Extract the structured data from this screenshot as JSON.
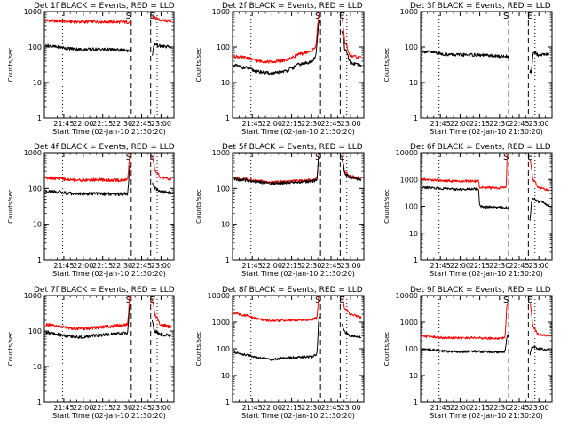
{
  "figure": {
    "background": "#ffffff",
    "axis_color": "#000000",
    "events_color": "#000000",
    "lld_color": "#ff0000"
  },
  "chart_data": [
    {
      "type": "line",
      "title": "Det 1f BLACK = Events, RED = LLD",
      "xlabel": "Start Time (02-Jan-10 21:30:20)",
      "ylabel": "Counts/sec",
      "xlim": [
        "21:30",
        "23:10"
      ],
      "xticks": [
        "21:45",
        "22:00",
        "22:15",
        "22:30",
        "22:45",
        "23:00"
      ],
      "yscale": "log",
      "ylim": [
        1,
        1000
      ],
      "yticks": [
        "1",
        "10",
        "100",
        "1000"
      ],
      "markers": {
        "dotted": [
          "21:44",
          "22:57"
        ],
        "dashed": [
          "22:37",
          "22:52"
        ],
        "labels": [
          "S",
          "E"
        ]
      },
      "series": [
        {
          "label": "Events",
          "color": "#000000",
          "gaps": [
            [
              "22:37",
              "22:53"
            ]
          ],
          "x": [
            "21:31",
            "21:40",
            "21:50",
            "22:00",
            "22:10",
            "22:20",
            "22:30",
            "22:36",
            "22:53",
            "22:55",
            "23:00",
            "23:08"
          ],
          "y": [
            110,
            100,
            90,
            85,
            87,
            85,
            82,
            80,
            60,
            120,
            105,
            100
          ]
        },
        {
          "label": "LLD",
          "color": "#ff0000",
          "gaps": [
            [
              "22:37",
              "22:53"
            ]
          ],
          "x": [
            "21:31",
            "21:40",
            "21:50",
            "22:00",
            "22:10",
            "22:20",
            "22:30",
            "22:36",
            "22:53",
            "22:56",
            "23:00",
            "23:08"
          ],
          "y": [
            560,
            540,
            520,
            510,
            520,
            515,
            505,
            500,
            720,
            650,
            560,
            540
          ]
        }
      ]
    },
    {
      "type": "line",
      "title": "Det 2f BLACK = Events, RED = LLD",
      "xlabel": "Start Time (02-Jan-10 21:30:20)",
      "ylabel": "Counts/sec",
      "xlim": [
        "21:30",
        "23:10"
      ],
      "xticks": [
        "21:45",
        "22:00",
        "22:15",
        "22:30",
        "22:45",
        "23:00"
      ],
      "yscale": "log",
      "ylim": [
        1,
        1000
      ],
      "yticks": [
        "1",
        "10",
        "100",
        "1000"
      ],
      "markers": {
        "dotted": [
          "21:44",
          "22:57"
        ],
        "dashed": [
          "22:37",
          "22:52"
        ],
        "labels": [
          "S",
          "E"
        ]
      },
      "series": [
        {
          "label": "Events",
          "color": "#000000",
          "gaps": [
            [
              "22:37",
              "22:53"
            ]
          ],
          "x": [
            "21:31",
            "21:40",
            "21:50",
            "22:00",
            "22:10",
            "22:15",
            "22:20",
            "22:30",
            "22:33",
            "22:36",
            "22:53",
            "22:56",
            "23:00",
            "23:08"
          ],
          "y": [
            30,
            26,
            20,
            18,
            21,
            25,
            32,
            38,
            50,
            500,
            300,
            80,
            35,
            30
          ]
        },
        {
          "label": "LLD",
          "color": "#ff0000",
          "gaps": [
            [
              "22:37",
              "22:53"
            ]
          ],
          "x": [
            "21:31",
            "21:40",
            "21:50",
            "22:00",
            "22:10",
            "22:15",
            "22:20",
            "22:30",
            "22:33",
            "22:36",
            "22:53",
            "22:56",
            "23:00",
            "23:08"
          ],
          "y": [
            55,
            50,
            40,
            38,
            42,
            50,
            62,
            75,
            100,
            800,
            700,
            120,
            55,
            50
          ]
        }
      ]
    },
    {
      "type": "line",
      "title": "Det 3f BLACK = Events, RED = LLD",
      "xlabel": "Start Time (02-Jan-10 21:30:20)",
      "ylabel": "Counts/sec",
      "xlim": [
        "21:30",
        "23:10"
      ],
      "xticks": [
        "21:45",
        "22:00",
        "22:15",
        "22:30",
        "22:45",
        "23:00"
      ],
      "yscale": "log",
      "ylim": [
        1,
        1000
      ],
      "yticks": [
        "1",
        "10",
        "100",
        "1000"
      ],
      "markers": {
        "dotted": [
          "21:44",
          "22:57"
        ],
        "dashed": [
          "22:37",
          "22:52"
        ],
        "labels": [
          "S",
          "E"
        ]
      },
      "series": [
        {
          "label": "Events",
          "color": "#000000",
          "gaps": [
            [
              "22:37",
              "22:53"
            ]
          ],
          "x": [
            "21:31",
            "21:40",
            "21:50",
            "22:00",
            "22:10",
            "22:20",
            "22:30",
            "22:36",
            "22:54",
            "22:56",
            "23:00",
            "23:08"
          ],
          "y": [
            75,
            70,
            62,
            60,
            60,
            58,
            55,
            55,
            20,
            70,
            60,
            65
          ]
        }
      ]
    },
    {
      "type": "line",
      "title": "Det 4f BLACK = Events, RED = LLD",
      "xlabel": "Start Time (02-Jan-10 21:30:20)",
      "ylabel": "Counts/sec",
      "xlim": [
        "21:30",
        "23:10"
      ],
      "xticks": [
        "21:45",
        "22:00",
        "22:15",
        "22:30",
        "22:45",
        "23:00"
      ],
      "yscale": "log",
      "ylim": [
        1,
        1000
      ],
      "yticks": [
        "1",
        "10",
        "100",
        "1000"
      ],
      "markers": {
        "dotted": [
          "21:44",
          "22:57"
        ],
        "dashed": [
          "22:37",
          "22:52"
        ],
        "labels": [
          "S",
          "E"
        ]
      },
      "series": [
        {
          "label": "Events",
          "color": "#000000",
          "gaps": [
            [
              "22:37",
              "22:53"
            ]
          ],
          "x": [
            "21:31",
            "21:40",
            "21:50",
            "22:00",
            "22:10",
            "22:20",
            "22:30",
            "22:34",
            "22:36",
            "22:53",
            "22:55",
            "23:00",
            "23:08"
          ],
          "y": [
            85,
            80,
            72,
            70,
            72,
            70,
            70,
            70,
            400,
            150,
            100,
            80,
            75
          ]
        },
        {
          "label": "LLD",
          "color": "#ff0000",
          "gaps": [
            [
              "22:37",
              "22:53"
            ]
          ],
          "x": [
            "21:31",
            "21:40",
            "21:50",
            "22:00",
            "22:10",
            "22:20",
            "22:30",
            "22:34",
            "22:36",
            "22:53",
            "22:56",
            "23:00",
            "23:08"
          ],
          "y": [
            200,
            190,
            175,
            170,
            175,
            170,
            168,
            175,
            900,
            800,
            300,
            200,
            180
          ]
        }
      ]
    },
    {
      "type": "line",
      "title": "Det 5f BLACK = Events, RED = LLD",
      "xlabel": "Start Time (02-Jan-10 21:30:20)",
      "ylabel": "Counts/sec",
      "xlim": [
        "21:30",
        "23:10"
      ],
      "xticks": [
        "21:45",
        "22:00",
        "22:15",
        "22:30",
        "22:45",
        "23:00"
      ],
      "yscale": "log",
      "ylim": [
        1,
        1000
      ],
      "yticks": [
        "1",
        "10",
        "100",
        "1000"
      ],
      "markers": {
        "dotted": [
          "21:44",
          "22:57"
        ],
        "dashed": [
          "22:37",
          "22:52"
        ],
        "labels": [
          "S",
          "E"
        ]
      },
      "series": [
        {
          "label": "Events",
          "color": "#000000",
          "gaps": [
            [
              "22:37",
              "22:53"
            ]
          ],
          "x": [
            "21:31",
            "21:40",
            "21:50",
            "22:00",
            "22:10",
            "22:20",
            "22:30",
            "22:34",
            "22:36",
            "22:53",
            "22:56",
            "23:00",
            "23:08"
          ],
          "y": [
            180,
            170,
            150,
            140,
            145,
            150,
            160,
            170,
            900,
            700,
            250,
            200,
            180
          ]
        },
        {
          "label": "LLD",
          "color": "#ff0000",
          "gaps": [
            [
              "22:37",
              "22:53"
            ]
          ],
          "x": [
            "21:31",
            "21:40",
            "21:50",
            "22:00",
            "22:10",
            "22:20",
            "22:30",
            "22:34",
            "22:36",
            "22:53",
            "22:56",
            "23:00",
            "23:08"
          ],
          "y": [
            190,
            180,
            160,
            150,
            155,
            160,
            170,
            180,
            950,
            750,
            270,
            210,
            190
          ]
        }
      ]
    },
    {
      "type": "line",
      "title": "Det 6f BLACK = Events, RED = LLD",
      "xlabel": "Start Time (02-Jan-10 21:30:20)",
      "ylabel": "Counts/sec",
      "xlim": [
        "21:30",
        "23:10"
      ],
      "xticks": [
        "21:45",
        "22:00",
        "22:15",
        "22:30",
        "22:45",
        "23:00"
      ],
      "yscale": "log",
      "ylim": [
        1,
        10000
      ],
      "yticks": [
        "1",
        "10",
        "100",
        "1000",
        "10000"
      ],
      "markers": {
        "dotted": [
          "21:44",
          "22:57"
        ],
        "dashed": [
          "22:37",
          "22:52"
        ],
        "labels": [
          "S",
          "E"
        ]
      },
      "series": [
        {
          "label": "Events",
          "color": "#000000",
          "gaps": [
            [
              "22:37",
              "22:53"
            ]
          ],
          "x": [
            "21:31",
            "21:40",
            "21:50",
            "22:00",
            "22:10",
            "22:14",
            "22:15",
            "22:20",
            "22:30",
            "22:36",
            "22:53",
            "22:55",
            "23:00",
            "23:08"
          ],
          "y": [
            500,
            480,
            450,
            420,
            450,
            440,
            100,
            95,
            90,
            88,
            30,
            200,
            150,
            110
          ]
        },
        {
          "label": "LLD",
          "color": "#ff0000",
          "gaps": [
            [
              "22:37",
              "22:53"
            ]
          ],
          "x": [
            "21:31",
            "21:40",
            "21:50",
            "22:00",
            "22:10",
            "22:14",
            "22:15",
            "22:30",
            "22:35",
            "22:36",
            "22:53",
            "22:56",
            "23:00",
            "23:08"
          ],
          "y": [
            1000,
            950,
            900,
            850,
            870,
            860,
            500,
            480,
            500,
            9000,
            6000,
            900,
            500,
            400
          ]
        }
      ]
    },
    {
      "type": "line",
      "title": "Det 7f BLACK = Events, RED = LLD",
      "xlabel": "Start Time (02-Jan-10 21:30:20)",
      "ylabel": "Counts/sec",
      "xlim": [
        "21:30",
        "23:10"
      ],
      "xticks": [
        "21:45",
        "22:00",
        "22:15",
        "22:30",
        "22:45",
        "23:00"
      ],
      "yscale": "log",
      "ylim": [
        1,
        1000
      ],
      "yticks": [
        "1",
        "10",
        "100",
        "1000"
      ],
      "markers": {
        "dotted": [
          "21:44",
          "22:57"
        ],
        "dashed": [
          "22:37",
          "22:52"
        ],
        "labels": [
          "S",
          "E"
        ]
      },
      "series": [
        {
          "label": "Events",
          "color": "#000000",
          "gaps": [
            [
              "22:37",
              "22:53"
            ]
          ],
          "x": [
            "21:31",
            "21:40",
            "21:50",
            "22:00",
            "22:10",
            "22:20",
            "22:30",
            "22:34",
            "22:36",
            "22:53",
            "22:55",
            "23:00",
            "23:08"
          ],
          "y": [
            90,
            80,
            70,
            68,
            75,
            80,
            85,
            90,
            500,
            200,
            100,
            80,
            75
          ]
        },
        {
          "label": "LLD",
          "color": "#ff0000",
          "gaps": [
            [
              "22:37",
              "22:53"
            ]
          ],
          "x": [
            "21:31",
            "21:40",
            "21:50",
            "22:00",
            "22:10",
            "22:20",
            "22:30",
            "22:34",
            "22:36",
            "22:53",
            "22:56",
            "23:00",
            "23:08"
          ],
          "y": [
            150,
            135,
            120,
            115,
            125,
            135,
            145,
            155,
            900,
            800,
            250,
            150,
            130
          ]
        }
      ]
    },
    {
      "type": "line",
      "title": "Det 8f BLACK = Events, RED = LLD",
      "xlabel": "Start Time (02-Jan-10 21:30:20)",
      "ylabel": "Counts/sec",
      "xlim": [
        "21:30",
        "23:10"
      ],
      "xticks": [
        "21:45",
        "22:00",
        "22:15",
        "22:30",
        "22:45",
        "23:00"
      ],
      "yscale": "log",
      "ylim": [
        1,
        10000
      ],
      "yticks": [
        "1",
        "10",
        "100",
        "1000",
        "10000"
      ],
      "markers": {
        "dotted": [
          "21:44",
          "22:57"
        ],
        "dashed": [
          "22:37",
          "22:52"
        ],
        "labels": [
          "S",
          "E"
        ]
      },
      "series": [
        {
          "label": "Events",
          "color": "#000000",
          "gaps": [
            [
              "22:37",
              "22:53"
            ]
          ],
          "x": [
            "21:31",
            "21:40",
            "21:50",
            "22:00",
            "22:10",
            "22:20",
            "22:30",
            "22:34",
            "22:36",
            "22:53",
            "22:56",
            "23:00",
            "23:08"
          ],
          "y": [
            75,
            60,
            45,
            40,
            45,
            48,
            50,
            60,
            1500,
            800,
            400,
            300,
            280
          ]
        },
        {
          "label": "LLD",
          "color": "#ff0000",
          "gaps": [
            [
              "22:37",
              "22:53"
            ]
          ],
          "x": [
            "21:31",
            "21:40",
            "21:50",
            "22:00",
            "22:10",
            "22:20",
            "22:30",
            "22:34",
            "22:36",
            "22:53",
            "22:56",
            "23:00",
            "23:08"
          ],
          "y": [
            2200,
            1800,
            1300,
            1100,
            1150,
            1200,
            1250,
            1400,
            9000,
            8000,
            3000,
            2000,
            1500
          ]
        }
      ]
    },
    {
      "type": "line",
      "title": "Det 9f BLACK = Events, RED = LLD",
      "xlabel": "Start Time (02-Jan-10 21:30:20)",
      "ylabel": "Counts/sec",
      "xlim": [
        "21:30",
        "23:10"
      ],
      "xticks": [
        "21:45",
        "22:00",
        "22:15",
        "22:30",
        "22:45",
        "23:00"
      ],
      "yscale": "log",
      "ylim": [
        1,
        10000
      ],
      "yticks": [
        "1",
        "10",
        "100",
        "1000",
        "10000"
      ],
      "markers": {
        "dotted": [
          "21:44",
          "22:57"
        ],
        "dashed": [
          "22:37",
          "22:52"
        ],
        "labels": [
          "S",
          "E"
        ]
      },
      "series": [
        {
          "label": "Events",
          "color": "#000000",
          "gaps": [
            [
              "22:37",
              "22:53"
            ]
          ],
          "x": [
            "21:31",
            "21:40",
            "21:50",
            "22:00",
            "22:10",
            "22:20",
            "22:30",
            "22:34",
            "22:36",
            "22:53",
            "22:55",
            "23:00",
            "23:08"
          ],
          "y": [
            100,
            90,
            80,
            78,
            80,
            78,
            75,
            80,
            300,
            60,
            120,
            100,
            90
          ]
        },
        {
          "label": "LLD",
          "color": "#ff0000",
          "gaps": [
            [
              "22:37",
              "22:53"
            ]
          ],
          "x": [
            "21:31",
            "21:40",
            "21:50",
            "22:00",
            "22:10",
            "22:20",
            "22:30",
            "22:34",
            "22:36",
            "22:53",
            "22:56",
            "23:00",
            "23:08"
          ],
          "y": [
            300,
            280,
            260,
            250,
            255,
            250,
            245,
            260,
            5000,
            5500,
            600,
            350,
            300
          ]
        }
      ]
    }
  ]
}
